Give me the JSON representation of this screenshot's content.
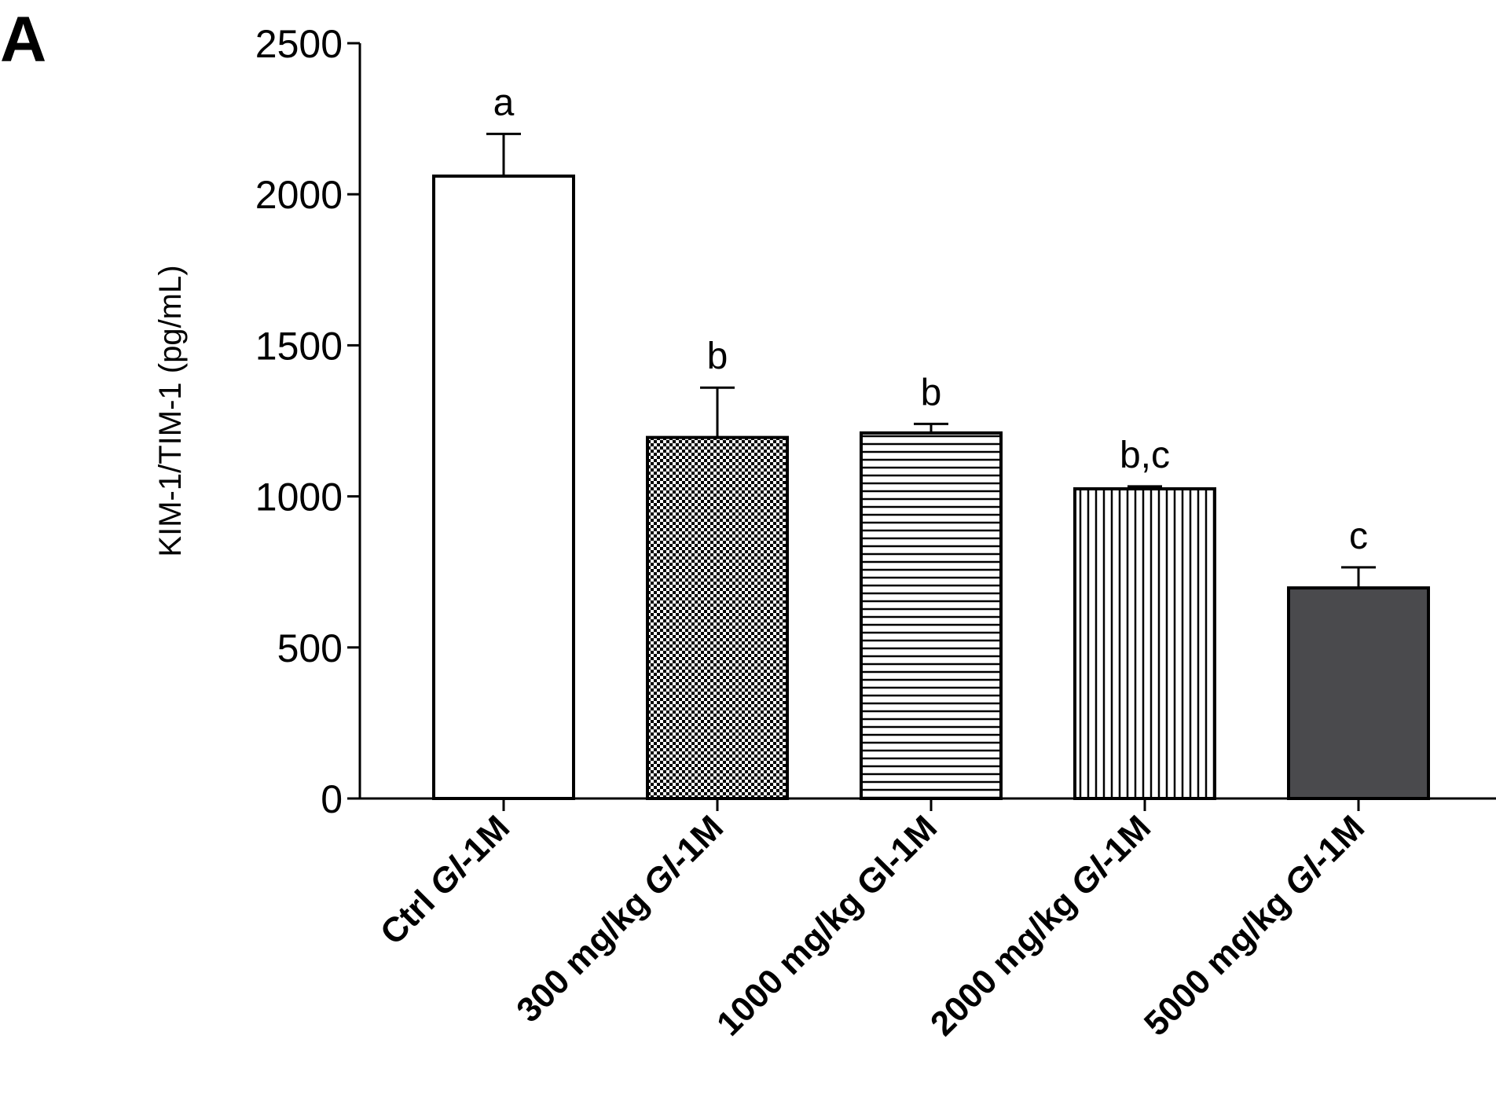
{
  "panel_label": "A",
  "chart_data": {
    "type": "bar",
    "title": "",
    "xlabel": "",
    "ylabel": "KIM-1/TIM-1 (pg/mL)",
    "ylim": [
      0,
      2500
    ],
    "yticks": [
      0,
      500,
      1000,
      1500,
      2000,
      2500
    ],
    "grid": false,
    "legend": "none",
    "categories": [
      {
        "prefix": "Ctrl ",
        "italic": "Gl",
        "suffix": "-1M"
      },
      {
        "prefix": "300 mg/kg ",
        "italic": "Gl",
        "suffix": "-1M"
      },
      {
        "prefix": "1000 mg/kg ",
        "italic": "",
        "suffix": "Gl-1M"
      },
      {
        "prefix": "2000 mg/kg ",
        "italic": "Gl",
        "suffix": "-1M"
      },
      {
        "prefix": "5000 mg/kg ",
        "italic": "Gl",
        "suffix": "-1M"
      }
    ],
    "values": [
      2060,
      1195,
      1210,
      1025,
      697
    ],
    "errors": [
      140,
      165,
      30,
      8,
      68
    ],
    "annotations": [
      "a",
      "b",
      "b",
      "b,c",
      "c"
    ],
    "fills": [
      "white",
      "checker",
      "horizontal-lines",
      "vertical-lines",
      "#4a4a4d"
    ]
  }
}
